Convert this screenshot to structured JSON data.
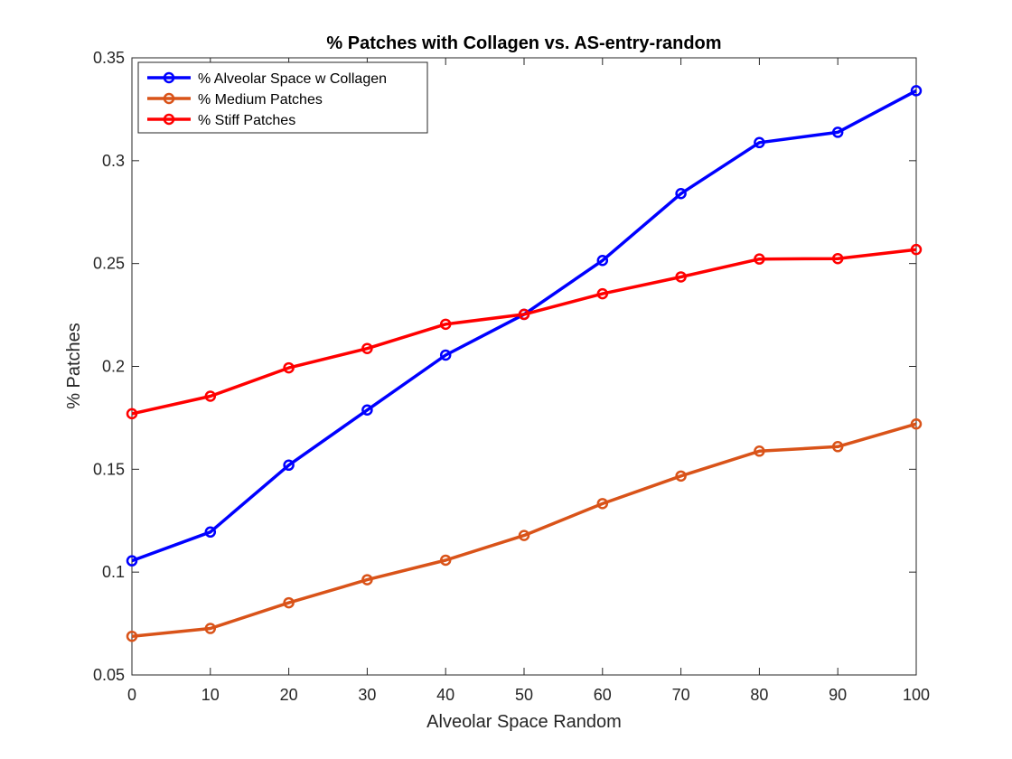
{
  "chart_data": {
    "type": "line",
    "title": "% Patches with Collagen vs. AS-entry-random",
    "xlabel": "Alveolar Space Random",
    "ylabel": "% Patches",
    "xlim": [
      0,
      100
    ],
    "ylim": [
      0.05,
      0.35
    ],
    "xticks": [
      "0",
      "10",
      "20",
      "30",
      "40",
      "50",
      "60",
      "70",
      "80",
      "90",
      "100"
    ],
    "yticks": [
      "0.05",
      "0.1",
      "0.15",
      "0.2",
      "0.25",
      "0.3",
      "0.35"
    ],
    "grid": false,
    "legend": "top-left",
    "x": [
      0,
      10,
      20,
      30,
      40,
      50,
      60,
      70,
      80,
      90,
      100
    ],
    "series": [
      {
        "name": "% Alveolar Space w Collagen",
        "color": "#0000ff",
        "values": [
          0.1055,
          0.1195,
          0.152,
          0.1788,
          0.2055,
          0.2253,
          0.2515,
          0.284,
          0.3088,
          0.3138,
          0.334
        ]
      },
      {
        "name": "% Medium Patches",
        "color": "#d95319",
        "values": [
          0.0688,
          0.0726,
          0.0851,
          0.0963,
          0.1058,
          0.1178,
          0.1333,
          0.1467,
          0.1588,
          0.161,
          0.172
        ]
      },
      {
        "name": "% Stiff Patches",
        "color": "#ff0000",
        "values": [
          0.177,
          0.1855,
          0.1993,
          0.2087,
          0.2205,
          0.2253,
          0.2353,
          0.2435,
          0.2522,
          0.2524,
          0.2568
        ]
      }
    ]
  }
}
